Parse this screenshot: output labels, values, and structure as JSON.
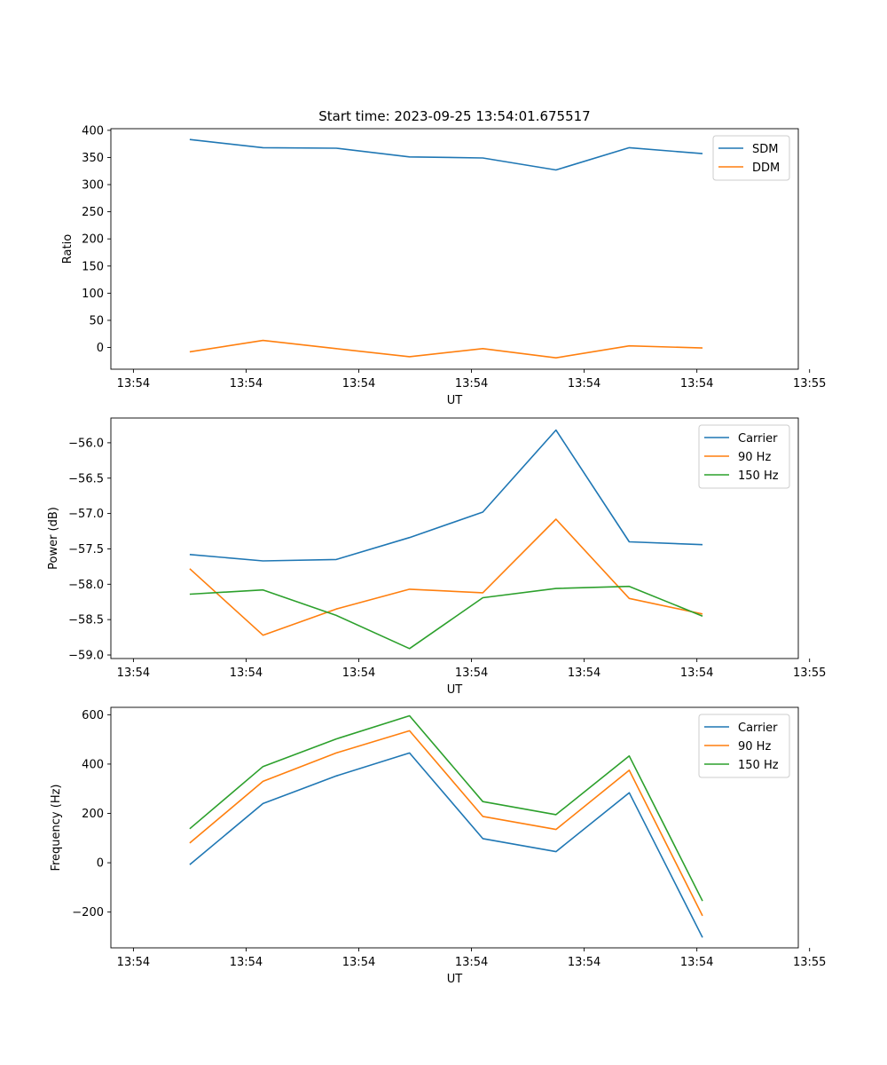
{
  "figure_title": "Start time: 2023-09-25 13:54:01.675517",
  "chart_data": [
    {
      "type": "line",
      "ylabel": "Ratio",
      "xlabel": "UT",
      "ylim": [
        -40,
        403
      ],
      "yticks": [
        0,
        50,
        100,
        150,
        200,
        250,
        300,
        350,
        400
      ],
      "ytick_labels": [
        "0",
        "50",
        "100",
        "150",
        "200",
        "250",
        "300",
        "350",
        "400"
      ],
      "legend": "top-right",
      "series": [
        {
          "name": "SDM",
          "color": "#1f77b4",
          "values": [
            383,
            368,
            367,
            351,
            349,
            327,
            368,
            357
          ]
        },
        {
          "name": "DDM",
          "color": "#ff7f0e",
          "values": [
            -8,
            13,
            -2,
            -17,
            -2,
            -19,
            3,
            -1
          ]
        }
      ]
    },
    {
      "type": "line",
      "ylabel": "Power (dB)",
      "xlabel": "UT",
      "ylim": [
        -59.05,
        -55.65
      ],
      "yticks": [
        -59.0,
        -58.5,
        -58.0,
        -57.5,
        -57.0,
        -56.5,
        -56.0
      ],
      "ytick_labels": [
        "−59.0",
        "−58.5",
        "−58.0",
        "−57.5",
        "−57.0",
        "−56.5",
        "−56.0"
      ],
      "legend": "top-right",
      "series": [
        {
          "name": "Carrier",
          "color": "#1f77b4",
          "values": [
            -57.58,
            -57.67,
            -57.65,
            -57.34,
            -56.98,
            -55.82,
            -57.4,
            -57.44
          ]
        },
        {
          "name": "90 Hz",
          "color": "#ff7f0e",
          "values": [
            -57.78,
            -58.72,
            -58.35,
            -58.07,
            -58.12,
            -57.08,
            -58.2,
            -58.42
          ]
        },
        {
          "name": "150 Hz",
          "color": "#2ca02c",
          "values": [
            -58.14,
            -58.08,
            -58.44,
            -58.91,
            -58.19,
            -58.06,
            -58.03,
            -58.45
          ]
        }
      ]
    },
    {
      "type": "line",
      "ylabel": "Frequency (Hz)",
      "xlabel": "UT",
      "ylim": [
        -345,
        630
      ],
      "yticks": [
        -200,
        0,
        200,
        400,
        600
      ],
      "ytick_labels": [
        "−200",
        "0",
        "200",
        "400",
        "600"
      ],
      "legend": "top-right",
      "series": [
        {
          "name": "Carrier",
          "color": "#1f77b4",
          "values": [
            -8,
            240,
            352,
            445,
            98,
            45,
            284,
            -303
          ]
        },
        {
          "name": "90 Hz",
          "color": "#ff7f0e",
          "values": [
            80,
            330,
            445,
            535,
            188,
            135,
            375,
            -215
          ]
        },
        {
          "name": "150 Hz",
          "color": "#2ca02c",
          "values": [
            138,
            390,
            502,
            596,
            248,
            195,
            433,
            -155
          ]
        }
      ]
    }
  ],
  "x_axis": {
    "x": [
      0.5,
      1.15,
      1.8,
      2.45,
      3.1,
      3.75,
      4.4,
      5.05
    ],
    "xlim": [
      -0.2,
      5.9
    ],
    "ticks": [
      0,
      1,
      2,
      3,
      4,
      5,
      6
    ],
    "tick_labels": [
      "13:54",
      "13:54",
      "13:54",
      "13:54",
      "13:54",
      "13:54",
      "13:55"
    ]
  }
}
